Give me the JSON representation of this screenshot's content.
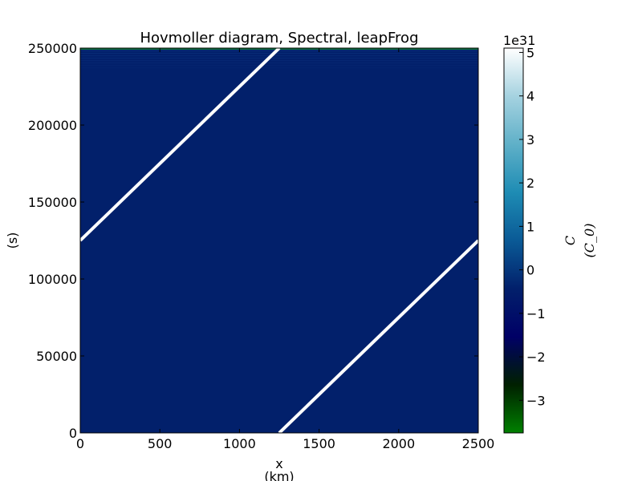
{
  "chart_data": {
    "type": "heatmap",
    "title": "Hovmoller diagram, Spectral, leapFrog",
    "xlabel_line1": "x",
    "xlabel_line2": "(km)",
    "ylabel": "(s)",
    "xlim": [
      0,
      2500
    ],
    "ylim": [
      0,
      250000
    ],
    "x_ticks": [
      0,
      500,
      1000,
      1500,
      2000,
      2500
    ],
    "y_ticks": [
      0,
      50000,
      100000,
      150000,
      200000,
      250000
    ],
    "field_color": "#02206b",
    "edge_band_color": "#0f7a3a",
    "ridge_color": "#ffffff",
    "ridge_lines": [
      {
        "x": [
          1250,
          2500
        ],
        "y": [
          0,
          125000
        ]
      },
      {
        "x": [
          0,
          1250
        ],
        "y": [
          125000,
          250000
        ]
      }
    ],
    "colorbar": {
      "label_line1": "C",
      "label_line2": "(C_0)",
      "offset_text": "1e31",
      "ticks": [
        -3,
        -2,
        -1,
        0,
        1,
        2,
        3,
        4,
        5
      ],
      "range": [
        -3.75,
        5.1
      ],
      "colormap": [
        "#008000",
        "#002000",
        "#000066",
        "#02206b",
        "#0a5a96",
        "#1e8cb4",
        "#5fb0c8",
        "#a5d2e0",
        "#ffffff"
      ]
    }
  }
}
